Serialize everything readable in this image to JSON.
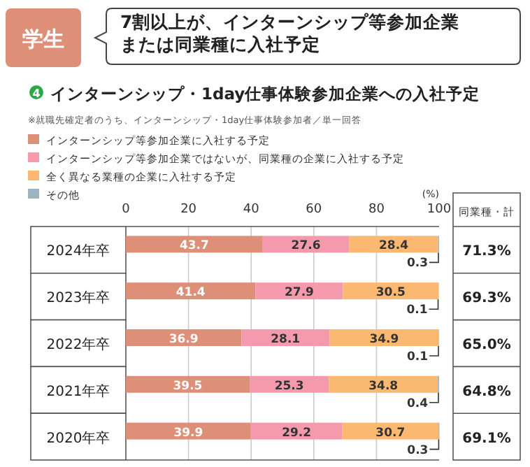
{
  "chart_data": {
    "type": "bar",
    "orientation": "horizontal",
    "stacked": true,
    "title": "7割以上が、インターンシップ等参加企業または同業種に入社予定",
    "subtitle": "インターンシップ・1day仕事体験参加企業への入社予定",
    "annotations": [
      "学生",
      "4",
      "※就職先確定者のうち、インターンシップ・1day仕事体験参加者／単一回答",
      "同業種・計",
      "71.3%",
      "69.3%",
      "65.0%",
      "64.8%",
      "69.1%"
    ],
    "xlabel": "(%)",
    "categories": [
      "2024年卒",
      "2023年卒",
      "2022年卒",
      "2021年卒",
      "2020年卒"
    ],
    "series": [
      {
        "name": "インターンシップ等参加企業に入社する予定",
        "color": "#dd8f78",
        "values": [
          43.7,
          41.4,
          36.9,
          39.5,
          39.9
        ]
      },
      {
        "name": "インターンシップ等参加企業ではないが、同業種の企業に入社する予定",
        "color": "#f59aac",
        "values": [
          27.6,
          27.9,
          28.1,
          25.3,
          29.2
        ]
      },
      {
        "name": "全く異なる業種の企業に入社する予定",
        "color": "#fbb870",
        "values": [
          28.4,
          30.5,
          34.9,
          34.8,
          30.7
        ]
      },
      {
        "name": "その他",
        "color": "#9fb3bd",
        "values": [
          0.3,
          0.1,
          0.1,
          0.4,
          0.3
        ]
      }
    ],
    "xlim": [
      0,
      100
    ],
    "xticks": [
      0,
      20,
      40,
      60,
      80,
      100
    ],
    "grid": "x",
    "legend": "top left",
    "data_labels": true
  }
}
